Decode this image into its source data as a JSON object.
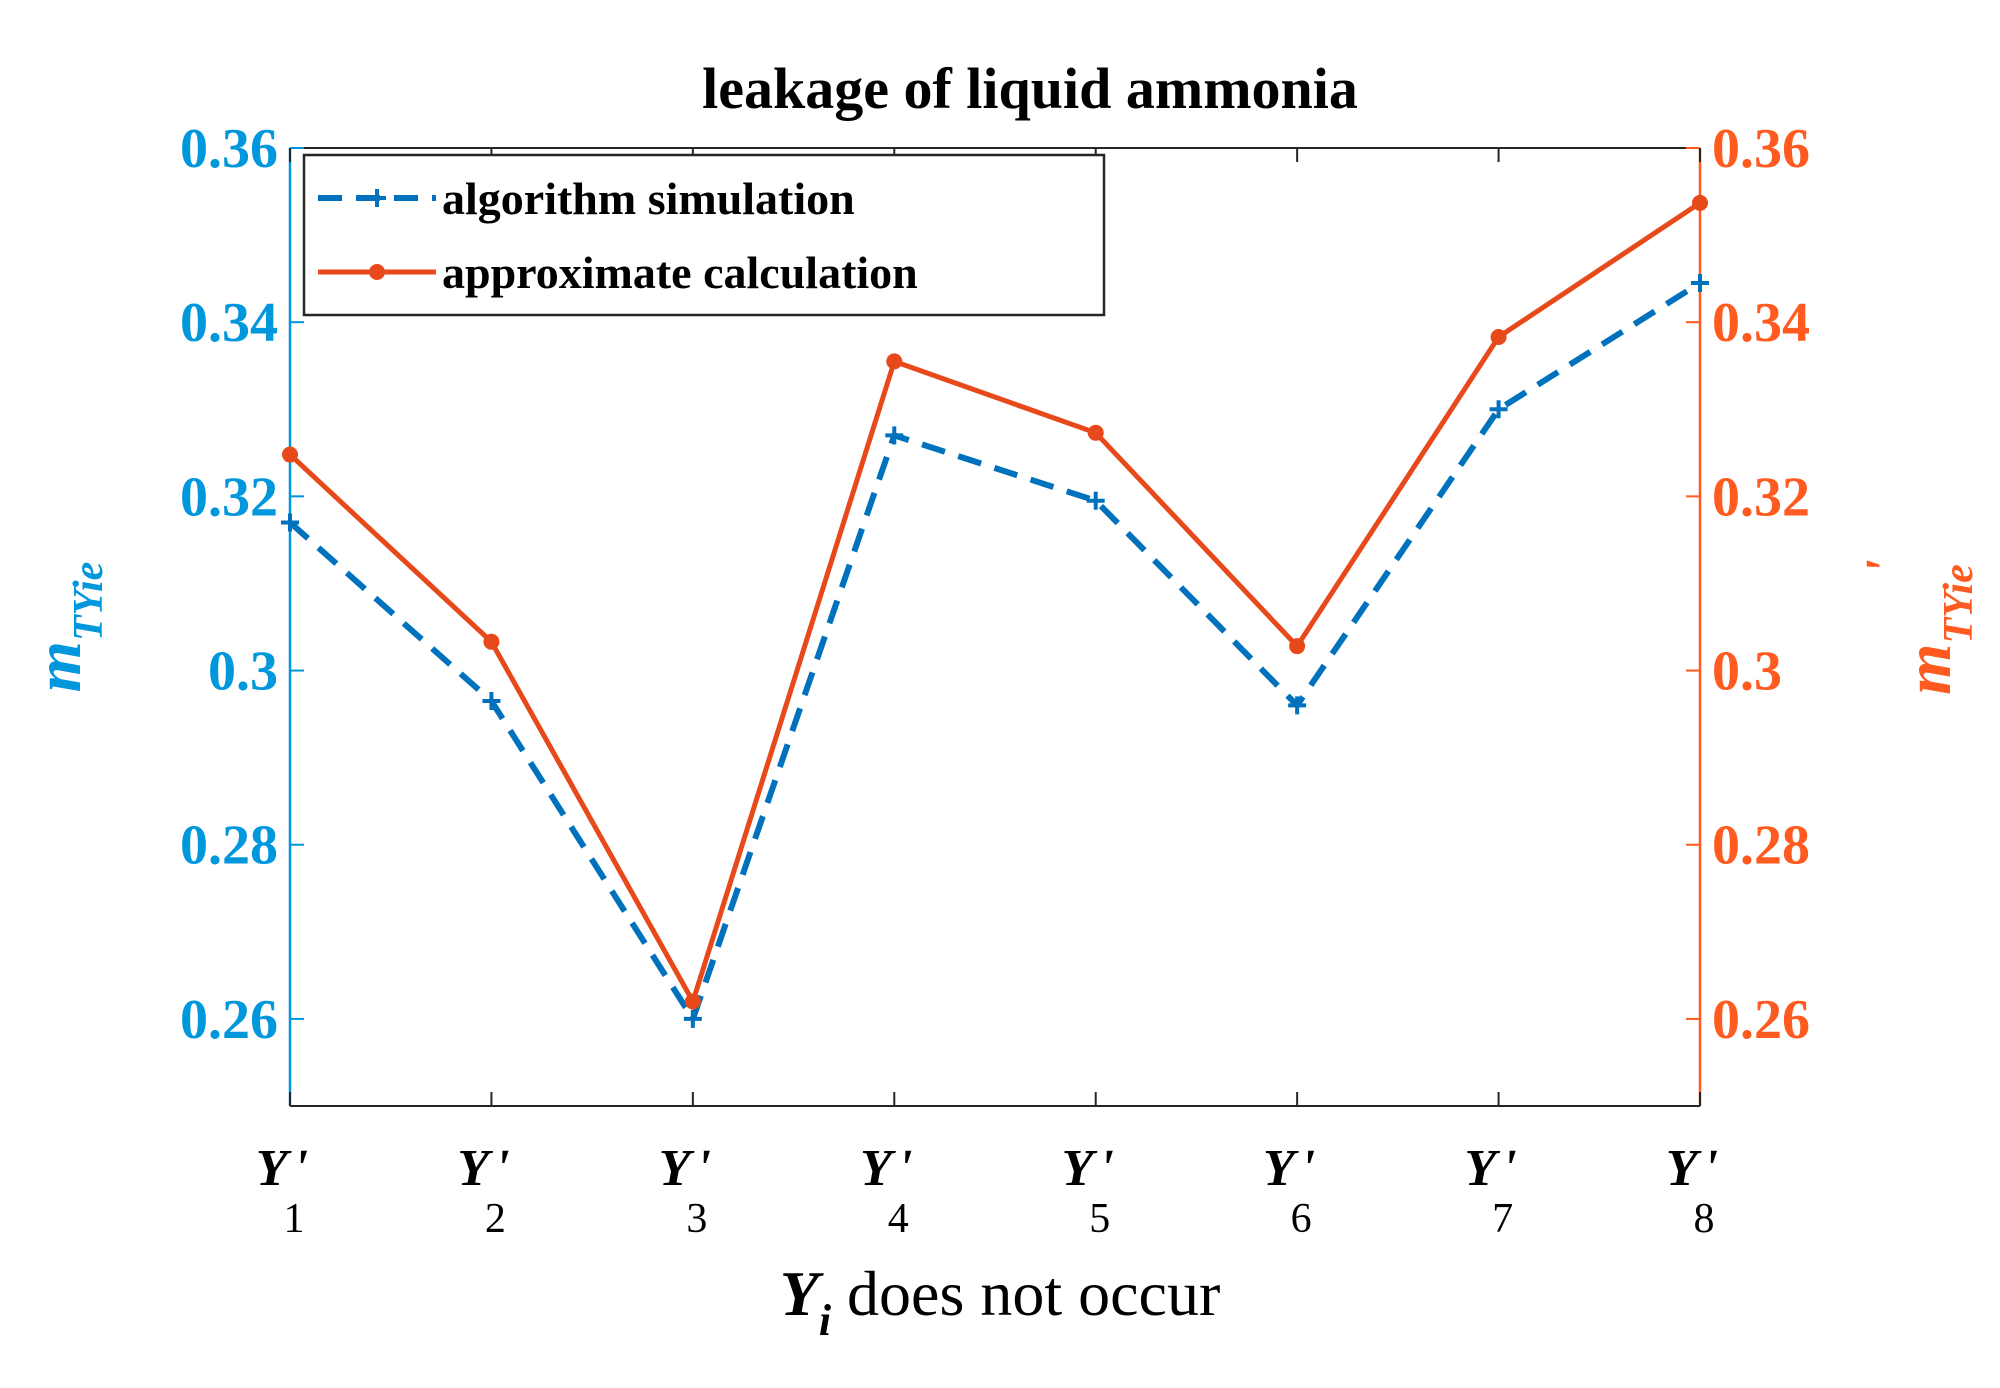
{
  "chart_data": {
    "type": "line",
    "title": "leakage of liquid ammonia",
    "categories": [
      {
        "main": "Y",
        "prime": "'",
        "sub": "1"
      },
      {
        "main": "Y",
        "prime": "'",
        "sub": "2"
      },
      {
        "main": "Y",
        "prime": "'",
        "sub": "3"
      },
      {
        "main": "Y",
        "prime": "'",
        "sub": "4"
      },
      {
        "main": "Y",
        "prime": "'",
        "sub": "5"
      },
      {
        "main": "Y",
        "prime": "'",
        "sub": "6"
      },
      {
        "main": "Y",
        "prime": "'",
        "sub": "7"
      },
      {
        "main": "Y",
        "prime": "'",
        "sub": "8"
      }
    ],
    "xlabel": {
      "var": "Y",
      "sub": "i",
      "text": " does not occur"
    },
    "ylabel_left": {
      "var": "m",
      "sub": "TYie"
    },
    "ylabel_right": {
      "var": "m",
      "sub": "TYie",
      "prime": "'"
    },
    "ylim": [
      0.25,
      0.36
    ],
    "yticks": [
      0.26,
      0.28,
      0.3,
      0.32,
      0.34,
      0.36
    ],
    "ytick_labels": [
      "0.26",
      "0.28",
      "0.3",
      "0.32",
      "0.34",
      "0.36"
    ],
    "series": [
      {
        "name": "algorithm simulation",
        "axis": "left",
        "style": "dashed",
        "marker": "plus",
        "color": "#0072BD",
        "values": [
          0.317,
          0.2965,
          0.26,
          0.327,
          0.3195,
          0.296,
          0.33,
          0.3445
        ]
      },
      {
        "name": "approximate calculation",
        "axis": "right",
        "style": "solid",
        "marker": "dot",
        "color": "#E8491B",
        "values": [
          0.3248,
          0.3033,
          0.262,
          0.3355,
          0.3273,
          0.3028,
          0.3383,
          0.3537
        ]
      }
    ],
    "left_axis_color": "#0097DC",
    "right_axis_color": "#FF5A1F",
    "legend_position": "top-left",
    "grid": false
  }
}
